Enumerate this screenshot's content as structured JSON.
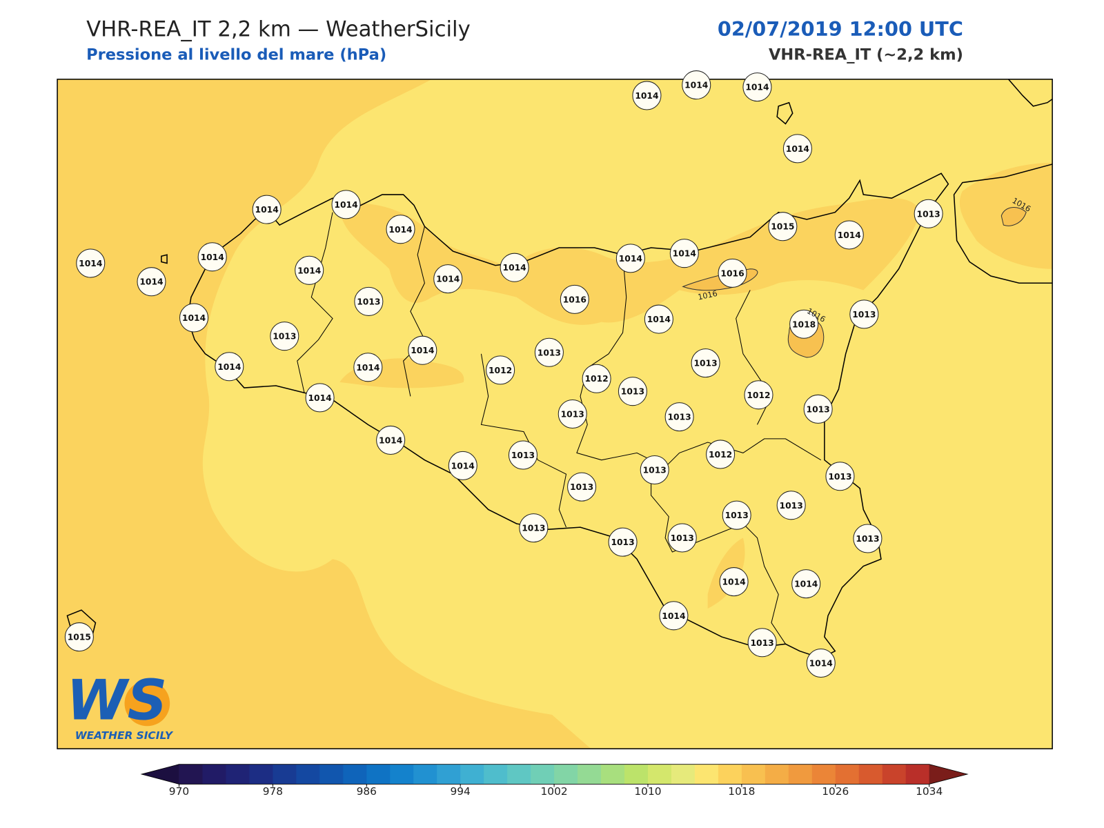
{
  "header": {
    "title": "VHR-REA_IT 2,2 km — WeatherSicily",
    "subtitle": "Pressione al livello del mare (hPa)",
    "datetime": "02/07/2019 12:00 UTC",
    "model": "VHR-REA_IT (~2,2 km)"
  },
  "stations": [
    1014,
    1014,
    1014,
    1014,
    1014,
    1014,
    1014,
    1014,
    1014,
    1014,
    1014,
    1014,
    1014,
    1014,
    1014,
    1015,
    1014,
    1013,
    1016,
    1013,
    1016,
    1014,
    1013,
    1018,
    1014,
    1013,
    1014,
    1013,
    1014,
    1014,
    1012,
    1012,
    1013,
    1013,
    1012,
    1013,
    1014,
    1013,
    1013,
    1014,
    1014,
    1013,
    1012,
    1013,
    1013,
    1013,
    1013,
    1013,
    1013,
    1013,
    1013,
    1013,
    1014,
    1014,
    1014,
    1013,
    1014,
    1015
  ],
  "contour_labels": [
    1016,
    1016,
    1016
  ],
  "colorbar": {
    "lim": [
      970,
      1034
    ],
    "ticks": [
      970,
      978,
      986,
      994,
      1002,
      1010,
      1018,
      1026,
      1034
    ],
    "colors": [
      "#221552",
      "#211b66",
      "#1f2375",
      "#1c2d84",
      "#183b93",
      "#1448a1",
      "#1156ae",
      "#0f64ba",
      "#0f73c4",
      "#1482cc",
      "#2191d1",
      "#30a0d3",
      "#3fb0d2",
      "#4fbdcc",
      "#5fc7c3",
      "#70cfb6",
      "#82d5a6",
      "#94da94",
      "#a8df7e",
      "#bce36a",
      "#d4e76c",
      "#e6ea7b",
      "#fce570",
      "#fcd25c",
      "#f8c050",
      "#f4ad46",
      "#f09a3e",
      "#eb8537",
      "#e37032",
      "#d85a2e",
      "#c9432b",
      "#b92f29"
    ],
    "extend_colors": [
      "#1c0f40",
      "#7a1d1a"
    ]
  },
  "logo": {
    "mark": "WS",
    "text": "WEATHER SICILY"
  }
}
